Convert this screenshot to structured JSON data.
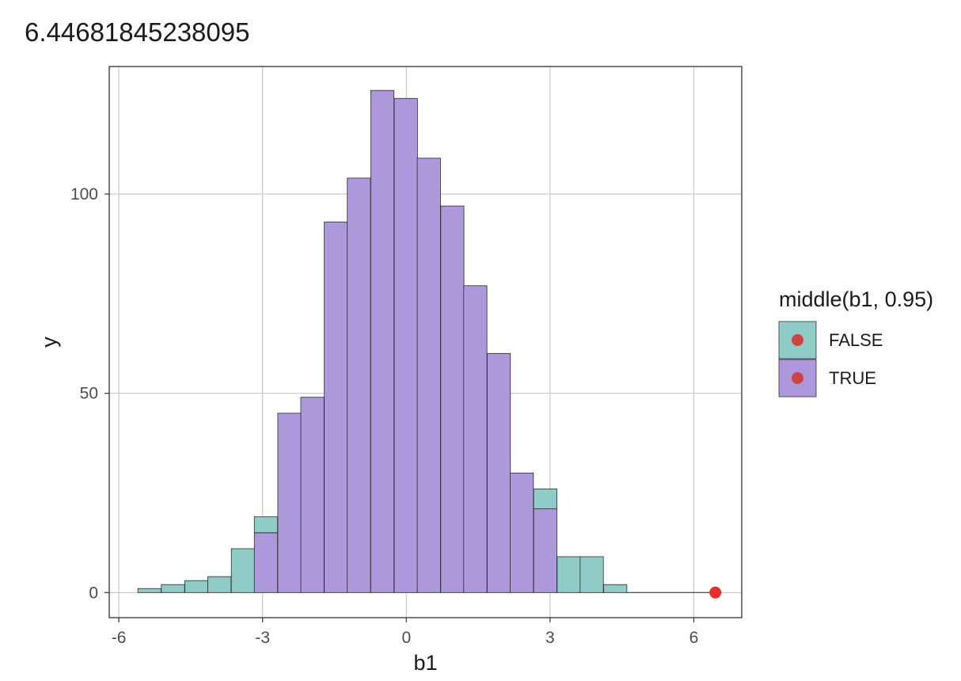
{
  "chart_data": {
    "type": "bar",
    "title": "6.44681845238095",
    "xlabel": "b1",
    "ylabel": "y",
    "xlim": [
      -6.2,
      7.0
    ],
    "ylim": [
      -6.3,
      132
    ],
    "xticks": [
      -6,
      -3,
      0,
      3,
      6
    ],
    "yticks": [
      0,
      50,
      100
    ],
    "grid": true,
    "bin_width": 0.485,
    "legend": {
      "title": "middle(b1, 0.95)",
      "placement": "right",
      "entries": [
        {
          "label": "FALSE",
          "color": "#8fcbc7"
        },
        {
          "label": "TRUE",
          "color": "#ae98dc"
        }
      ]
    },
    "bins": [
      {
        "x": -5.36,
        "false": 1,
        "true": 0
      },
      {
        "x": -4.87,
        "false": 2,
        "true": 0
      },
      {
        "x": -4.38,
        "false": 3,
        "true": 0
      },
      {
        "x": -3.9,
        "false": 4,
        "true": 0
      },
      {
        "x": -3.41,
        "false": 11,
        "true": 0
      },
      {
        "x": -2.93,
        "false": 4,
        "true": 15
      },
      {
        "x": -2.44,
        "false": 0,
        "true": 45
      },
      {
        "x": -1.96,
        "false": 0,
        "true": 49
      },
      {
        "x": -1.47,
        "false": 0,
        "true": 93
      },
      {
        "x": -0.99,
        "false": 0,
        "true": 104
      },
      {
        "x": -0.5,
        "false": 0,
        "true": 126
      },
      {
        "x": -0.01,
        "false": 0,
        "true": 124
      },
      {
        "x": 0.47,
        "false": 0,
        "true": 109
      },
      {
        "x": 0.96,
        "false": 0,
        "true": 97
      },
      {
        "x": 1.44,
        "false": 0,
        "true": 77
      },
      {
        "x": 1.93,
        "false": 0,
        "true": 60
      },
      {
        "x": 2.41,
        "false": 0,
        "true": 30
      },
      {
        "x": 2.9,
        "false": 5,
        "true": 21
      },
      {
        "x": 3.39,
        "false": 9,
        "true": 0
      },
      {
        "x": 3.87,
        "false": 9,
        "true": 0
      },
      {
        "x": 4.36,
        "false": 2,
        "true": 0
      },
      {
        "x": 4.84,
        "false": 0,
        "true": 0
      },
      {
        "x": 5.33,
        "false": 0,
        "true": 0
      },
      {
        "x": 5.81,
        "false": 0,
        "true": 0
      },
      {
        "x": 6.3,
        "false": 0,
        "true": 0
      }
    ],
    "point": {
      "x": 6.45,
      "y": 0,
      "color": "#e8302a"
    },
    "colors": {
      "false_fill": "#8fcbc7",
      "true_fill": "#ae98dc",
      "bar_stroke": "#2a2a2a",
      "grid": "#c8c8c8",
      "panel_border": "#333333",
      "tick_text": "#4d4d4d",
      "legend_point": "#cc4444"
    }
  }
}
